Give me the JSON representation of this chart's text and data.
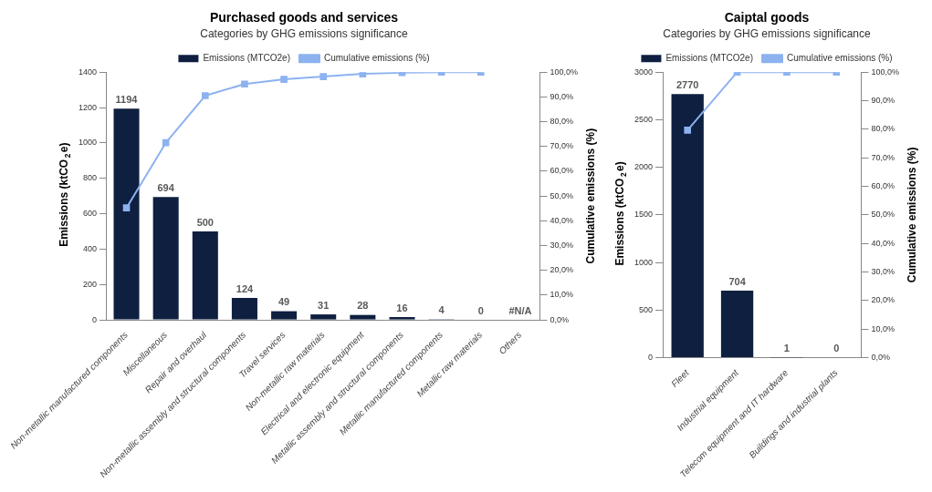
{
  "chart_data": [
    {
      "type": "bar",
      "title": "Purchased goods and services",
      "subtitle": "Categories by GHG emissions significance",
      "ylabel": "Emissions (ktCO$_{2}$e)",
      "y2label": "Cumulative emissions (%)",
      "categories": [
        "Non-metallic manufactured components",
        "Miscellaneous",
        "Repair and overhaul",
        "Non-metallic assembly and structural components",
        "Travel services",
        "Non-metallic raw materials",
        "Electrical and electronic equipment",
        "Metallic assembly and structural components",
        "Metallic manufactured components",
        "Metallic raw materials",
        "Others"
      ],
      "series": [
        {
          "name": "Emissions (MTCO2e)",
          "color": "#0e1f40",
          "values": [
            1194,
            694,
            500,
            124,
            49,
            31,
            28,
            16,
            4,
            0,
            null
          ],
          "value_labels": [
            "1194",
            "694",
            "500",
            "124",
            "49",
            "31",
            "28",
            "16",
            "4",
            "0",
            "#N/A"
          ]
        },
        {
          "name": "Cumulative emissions (%)",
          "type": "line",
          "axis": "y2",
          "color": "#8cb2f0",
          "marker": "square",
          "values": [
            45.2,
            71.5,
            90.5,
            95.2,
            97.1,
            98.2,
            99.3,
            99.8,
            100,
            100,
            null
          ]
        }
      ],
      "ylim": [
        0,
        1400
      ],
      "yticks": [
        0,
        200,
        400,
        600,
        800,
        1000,
        1200,
        1400
      ],
      "y2lim": [
        0,
        100
      ],
      "y2ticks": [
        {
          "value": 0,
          "label": "0,0%"
        },
        {
          "value": 10,
          "label": "10,0%"
        },
        {
          "value": 20,
          "label": "20,0%"
        },
        {
          "value": 30,
          "label": "30,0%"
        },
        {
          "value": 40,
          "label": "40,0%"
        },
        {
          "value": 50,
          "label": "50,0%"
        },
        {
          "value": 60,
          "label": "60,0%"
        },
        {
          "value": 70,
          "label": "70,0%"
        },
        {
          "value": 80,
          "label": "80,0%"
        },
        {
          "value": 90,
          "label": "90,0%"
        },
        {
          "value": 100,
          "label": "100,0%"
        }
      ],
      "grid": false,
      "legend": "top"
    },
    {
      "type": "bar",
      "title": "Caiptal goods",
      "subtitle": "Categories by GHG emissions significance",
      "ylabel": "Emissions (ktCO$_{2}$e)",
      "y2label": "Cumulative emissions (%)",
      "categories": [
        "Fleet",
        "Industrial equipment",
        "Telecom equipment and IT hardware",
        "Buildings and industrial plants"
      ],
      "series": [
        {
          "name": "Emissions (MTCO2e)",
          "color": "#0e1f40",
          "values": [
            2770,
            704,
            1,
            0
          ],
          "value_labels": [
            "2770",
            "704",
            "1",
            "0"
          ]
        },
        {
          "name": "Cumulative emissions (%)",
          "type": "line",
          "axis": "y2",
          "color": "#8cb2f0",
          "marker": "square",
          "values": [
            79.7,
            100,
            100,
            100
          ]
        }
      ],
      "ylim": [
        0,
        3000
      ],
      "yticks": [
        0,
        500,
        1000,
        1500,
        2000,
        2500,
        3000
      ],
      "y2lim": [
        0,
        100
      ],
      "y2ticks": [
        {
          "value": 0,
          "label": "0,0%"
        },
        {
          "value": 10,
          "label": "10,0%"
        },
        {
          "value": 20,
          "label": "20,0%"
        },
        {
          "value": 30,
          "label": "30,0%"
        },
        {
          "value": 40,
          "label": "40,0%"
        },
        {
          "value": 50,
          "label": "50,0%"
        },
        {
          "value": 60,
          "label": "60,0%"
        },
        {
          "value": 70,
          "label": "70,0%"
        },
        {
          "value": 80,
          "label": "80,0%"
        },
        {
          "value": 90,
          "label": "90,0%"
        },
        {
          "value": 100,
          "label": "100,0%"
        }
      ],
      "grid": false,
      "legend": "top"
    }
  ]
}
